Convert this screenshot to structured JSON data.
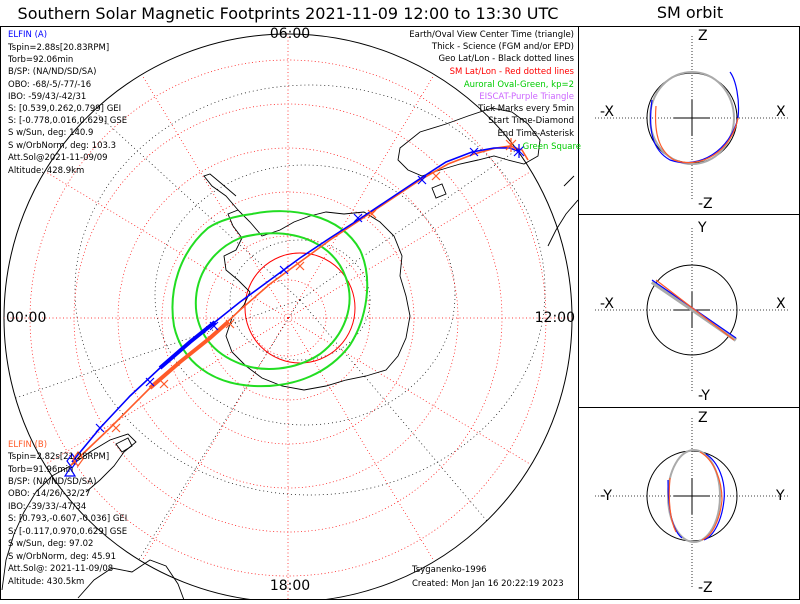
{
  "header": {
    "title": "Southern Solar Magnetic Footprints 2021-11-09 12:00 to 13:30 UTC",
    "orbit_title": "SM orbit"
  },
  "polar_plot": {
    "time_labels": {
      "top": "06:00",
      "left": "00:00",
      "right": "12:00",
      "bottom": "18:00"
    }
  },
  "elfin_a": {
    "name": "ELFIN (A)",
    "color": "#0000ff",
    "lines": [
      "Tspin=2.88s[20.83RPM]",
      "Torb=92.06min",
      "B/SP: (NA/ND/SD/SA)",
      "OBO: -68/-5/-77/-16",
      "IBO: -59/43/-42/31",
      "S: [0.539,0.262,0.799] GEI",
      "S: [-0.778,0.016,0.629] GSE",
      "S w/Sun, deg: 140.9",
      "S w/OrbNorm, deg: 103.3",
      "Att.Sol@2021-11-09/09",
      "Altitude: 428.9km"
    ]
  },
  "elfin_b": {
    "name": "ELFIN (B)",
    "color": "#ff5a28",
    "lines": [
      "Tspin=2.82s[21.28RPM]",
      "Torb=91.96min",
      "B/SP: (NA/ND/SD/SA)",
      "OBO: -14/26/-32/27",
      "IBO: -39/33/-47/34",
      "S: [0.793,-0.607,-0.036] GEI",
      "S: [-0.117,0.970,0.629] GSE",
      "S w/Sun, deg: 97.02",
      "S w/OrbNorm, deg: 45.91",
      "Att.Sol@: 2021-11-09/08",
      "Altitude: 430.5km"
    ]
  },
  "legend": [
    {
      "text": "Earth/Oval View Center Time (triangle)",
      "color": "#000000"
    },
    {
      "text": "Thick - Science (FGM and/or EPD)",
      "color": "#000000"
    },
    {
      "text": "Geo Lat/Lon - Black dotted lines",
      "color": "#000000"
    },
    {
      "text": "SM Lat/Lon - Red dotted lines",
      "color": "#ff0000"
    },
    {
      "text": "Auroral Oval-Green, kp=2",
      "color": "#00cc00"
    },
    {
      "text": "EISCAT-Purple Triangle",
      "color": "#cc66ff"
    },
    {
      "text": "Tick Marks every 5min",
      "color": "#000000"
    },
    {
      "text": "Start Time-Diamond",
      "color": "#000000"
    },
    {
      "text": "End Time-Asterisk",
      "color": "#000000"
    },
    {
      "text": "Green Square",
      "color": "#00cc00"
    }
  ],
  "footer": {
    "credit": "Tsyganenko-1996",
    "created": "Created: Mon Jan 16 20:22:19 2023"
  },
  "orbit_panels": [
    {
      "top": "Z",
      "bottom": "-Z",
      "left": "-X",
      "right": "X"
    },
    {
      "top": "Y",
      "bottom": "-Y",
      "left": "-X",
      "right": "X"
    },
    {
      "top": "Z",
      "bottom": "-Z",
      "left": "-Y",
      "right": "Y"
    }
  ]
}
